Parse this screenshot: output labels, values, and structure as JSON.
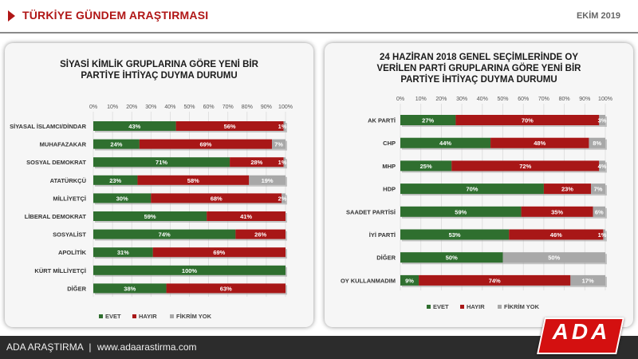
{
  "header": {
    "title": "TÜRKİYE GÜNDEM ARAŞTIRMASI",
    "date": "EKİM 2019"
  },
  "footer": {
    "brand": "ADA ARAŞTIRMA",
    "separator": "|",
    "url": "www.adaarastirma.com",
    "logo_text": "ADA"
  },
  "colors": {
    "evet": "#2f6f2f",
    "hayir": "#a81717",
    "fikrim_yok": "#a8a8a8",
    "accent": "#b01616"
  },
  "chart_data": [
    {
      "type": "bar",
      "orientation": "horizontal-stacked",
      "title_lines": [
        "SİYASİ KİMLİK GRUPLARINA GÖRE YENİ BİR",
        "PARTİYE İHTİYAÇ DUYMA DURUMU"
      ],
      "ticks": [
        "0%",
        "10%",
        "20%",
        "30%",
        "40%",
        "50%",
        "60%",
        "70%",
        "80%",
        "90%",
        "100%"
      ],
      "xlim": [
        0,
        100
      ],
      "legend_position": "bottom",
      "categories": [
        "SİYASAL İSLAMCI/DİNDAR",
        "MUHAFAZAKAR",
        "SOSYAL DEMOKRAT",
        "ATATÜRKÇÜ",
        "MİLLİYETÇİ",
        "LİBERAL DEMOKRAT",
        "SOSYALİST",
        "APOLİTİK",
        "KÜRT MİLLİYETÇİ",
        "DİĞER"
      ],
      "series": [
        {
          "name": "EVET",
          "color": "#2f6f2f",
          "values": [
            43,
            24,
            71,
            23,
            30,
            59,
            74,
            31,
            100,
            38
          ],
          "labels": [
            "43%",
            "24%",
            "71%",
            "23%",
            "30%",
            "59%",
            "74%",
            "31%",
            "100%",
            "38%"
          ]
        },
        {
          "name": "HAYIR",
          "color": "#a81717",
          "values": [
            56,
            69,
            28,
            58,
            68,
            41,
            26,
            69,
            0,
            63
          ],
          "labels": [
            "56%",
            "69%",
            "28%",
            "58%",
            "68%",
            "41%",
            "26%",
            "69%",
            "",
            "63%"
          ]
        },
        {
          "name": "FİKRİM YOK",
          "color": "#a8a8a8",
          "values": [
            1,
            7,
            1,
            19,
            2,
            0,
            0,
            0,
            0,
            0
          ],
          "labels": [
            "1%",
            "7%",
            "1%",
            "19%",
            "2%",
            "",
            "",
            "",
            "",
            ""
          ]
        }
      ]
    },
    {
      "type": "bar",
      "orientation": "horizontal-stacked",
      "title_lines": [
        "24 HAZİRAN 2018 GENEL SEÇİMLERİNDE OY",
        "VERİLEN PARTİ GRUPLARINA GÖRE YENİ BİR",
        "PARTİYE İHTİYAÇ DUYMA DURUMU"
      ],
      "ticks": [
        "0%",
        "10%",
        "20%",
        "30%",
        "40%",
        "50%",
        "60%",
        "70%",
        "80%",
        "90%",
        "100%"
      ],
      "xlim": [
        0,
        100
      ],
      "legend_position": "bottom",
      "categories": [
        "AK PARTİ",
        "CHP",
        "MHP",
        "HDP",
        "SAADET PARTİSİ",
        "İYİ PARTİ",
        "DİĞER",
        "OY KULLANMADIM"
      ],
      "series": [
        {
          "name": "EVET",
          "color": "#2f6f2f",
          "values": [
            27,
            44,
            25,
            70,
            59,
            53,
            50,
            9
          ],
          "labels": [
            "27%",
            "44%",
            "25%",
            "70%",
            "59%",
            "53%",
            "50%",
            "9%"
          ]
        },
        {
          "name": "HAYIR",
          "color": "#a81717",
          "values": [
            70,
            48,
            72,
            23,
            35,
            46,
            0,
            74
          ],
          "labels": [
            "70%",
            "48%",
            "72%",
            "23%",
            "35%",
            "46%",
            "",
            "74%"
          ]
        },
        {
          "name": "FİKRİM YOK",
          "color": "#a8a8a8",
          "values": [
            3,
            8,
            4,
            7,
            6,
            1,
            50,
            17
          ],
          "labels": [
            "3%",
            "8%",
            "4%",
            "7%",
            "6%",
            "1%",
            "50%",
            "17%"
          ]
        }
      ]
    }
  ]
}
